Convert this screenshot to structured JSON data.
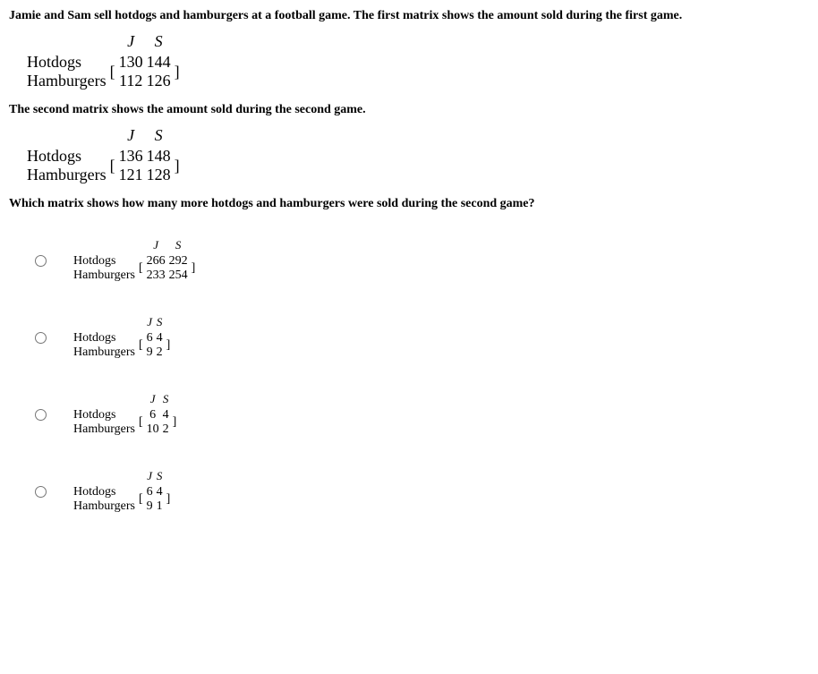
{
  "intro": "Jamie and Sam sell hotdogs and hamburgers at a football game. The first matrix shows the amount sold during the first game.",
  "second_intro": "The second matrix shows the amount sold during the second game.",
  "question": "Which matrix shows how many more hotdogs and hamburgers were sold during the second game?",
  "col_headers": {
    "j": "J",
    "s": "S"
  },
  "row_labels": {
    "hotdogs": "Hotdogs",
    "hamburgers": "Hamburgers"
  },
  "matrix1": {
    "hotdogs_j": "130",
    "hotdogs_s": "144",
    "hamburgers_j": "112",
    "hamburgers_s": "126"
  },
  "matrix2": {
    "hotdogs_j": "136",
    "hotdogs_s": "148",
    "hamburgers_j": "121",
    "hamburgers_s": "128"
  },
  "options": {
    "a": {
      "hotdogs_j": "266",
      "hotdogs_s": "292",
      "hamburgers_j": "233",
      "hamburgers_s": "254"
    },
    "b": {
      "hotdogs_j": "6",
      "hotdogs_s": "4",
      "hamburgers_j": "9",
      "hamburgers_s": "2"
    },
    "c": {
      "hotdogs_j": "6",
      "hotdogs_s": "4",
      "hamburgers_j": "10",
      "hamburgers_s": "2"
    },
    "d": {
      "hotdogs_j": "6",
      "hotdogs_s": "4",
      "hamburgers_j": "9",
      "hamburgers_s": "1"
    }
  }
}
